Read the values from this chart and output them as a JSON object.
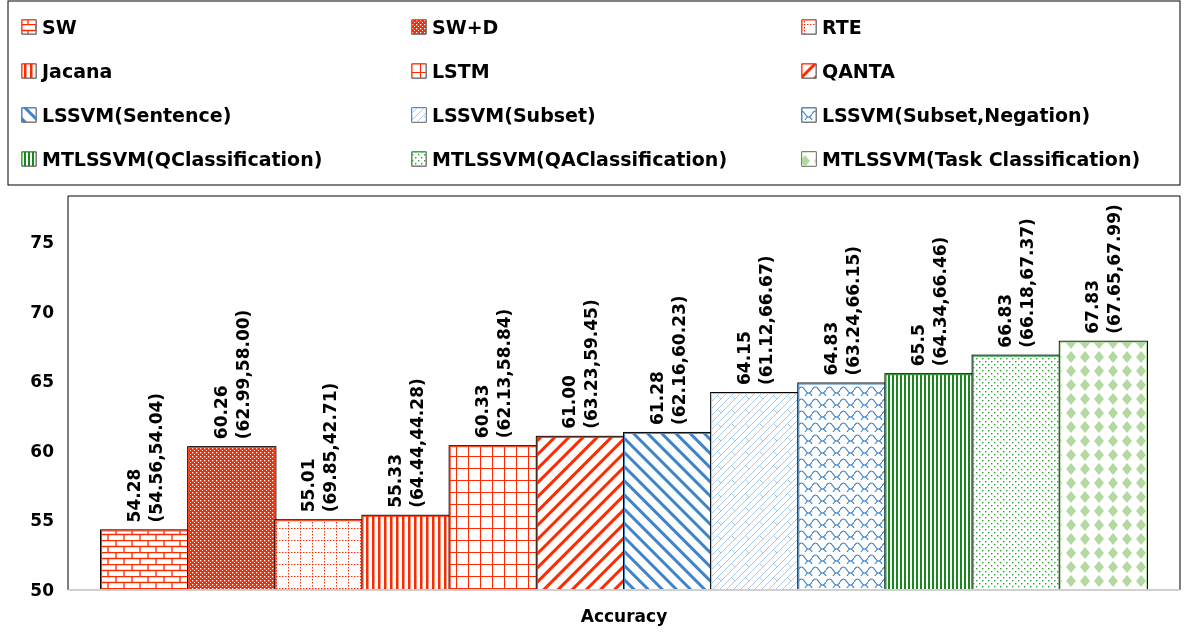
{
  "chart_data": {
    "type": "bar",
    "categories": [
      "Accuracy"
    ],
    "ylim": [
      50,
      78.3
    ],
    "yticks": [
      50,
      55,
      60,
      65,
      70,
      75
    ],
    "grid": false,
    "legend": "top",
    "series": [
      {
        "name": "SW",
        "color": "#ff2a00",
        "values": [
          54.28
        ],
        "value_labels": [
          "54.28\n(54.56,54.04)"
        ]
      },
      {
        "name": "SW+D",
        "color": "#ff2a00",
        "values": [
          60.26
        ],
        "value_labels": [
          "60.26\n(62.99,58.00)"
        ]
      },
      {
        "name": "RTE",
        "color": "#ff2a00",
        "values": [
          55.01
        ],
        "value_labels": [
          "55.01\n(69.85,42.71)"
        ]
      },
      {
        "name": "Jacana",
        "color": "#ff2a00",
        "values": [
          55.33
        ],
        "value_labels": [
          "55.33\n(64.44,44.28)"
        ]
      },
      {
        "name": "LSTM",
        "color": "#ff2a00",
        "values": [
          60.33
        ],
        "value_labels": [
          "60.33\n(62.13,58.84)"
        ]
      },
      {
        "name": "QANTA",
        "color": "#ff2a00",
        "values": [
          61.0
        ],
        "value_labels": [
          "61.00\n(63.23,59.45)"
        ]
      },
      {
        "name": "LSSVM(Sentence)",
        "color": "#3f84c8",
        "values": [
          61.28
        ],
        "value_labels": [
          "61.28\n(62.16,60.23)"
        ]
      },
      {
        "name": "LSSVM(Subset)",
        "color": "#a9c9ea",
        "values": [
          64.15
        ],
        "value_labels": [
          "64.15\n(61.12,66.67)"
        ]
      },
      {
        "name": "LSSVM(Subset,Negation)",
        "color": "#3f84c8",
        "values": [
          64.83
        ],
        "value_labels": [
          "64.83\n(63.24,66.15)"
        ]
      },
      {
        "name": "MTLSSVM(QClassification)",
        "color": "#16891a",
        "values": [
          65.5
        ],
        "value_labels": [
          "65.5\n(64.34,66.46)"
        ]
      },
      {
        "name": "MTLSSVM(QAClassification)",
        "color": "#2f9e3a",
        "values": [
          66.83
        ],
        "value_labels": [
          "66.83\n(66.18,67.37)"
        ]
      },
      {
        "name": "MTLSSVM(Task Classification)",
        "color": "#b3d9a1",
        "values": [
          67.83
        ],
        "value_labels": [
          "67.83\n(67.65,67.99)"
        ]
      }
    ]
  }
}
